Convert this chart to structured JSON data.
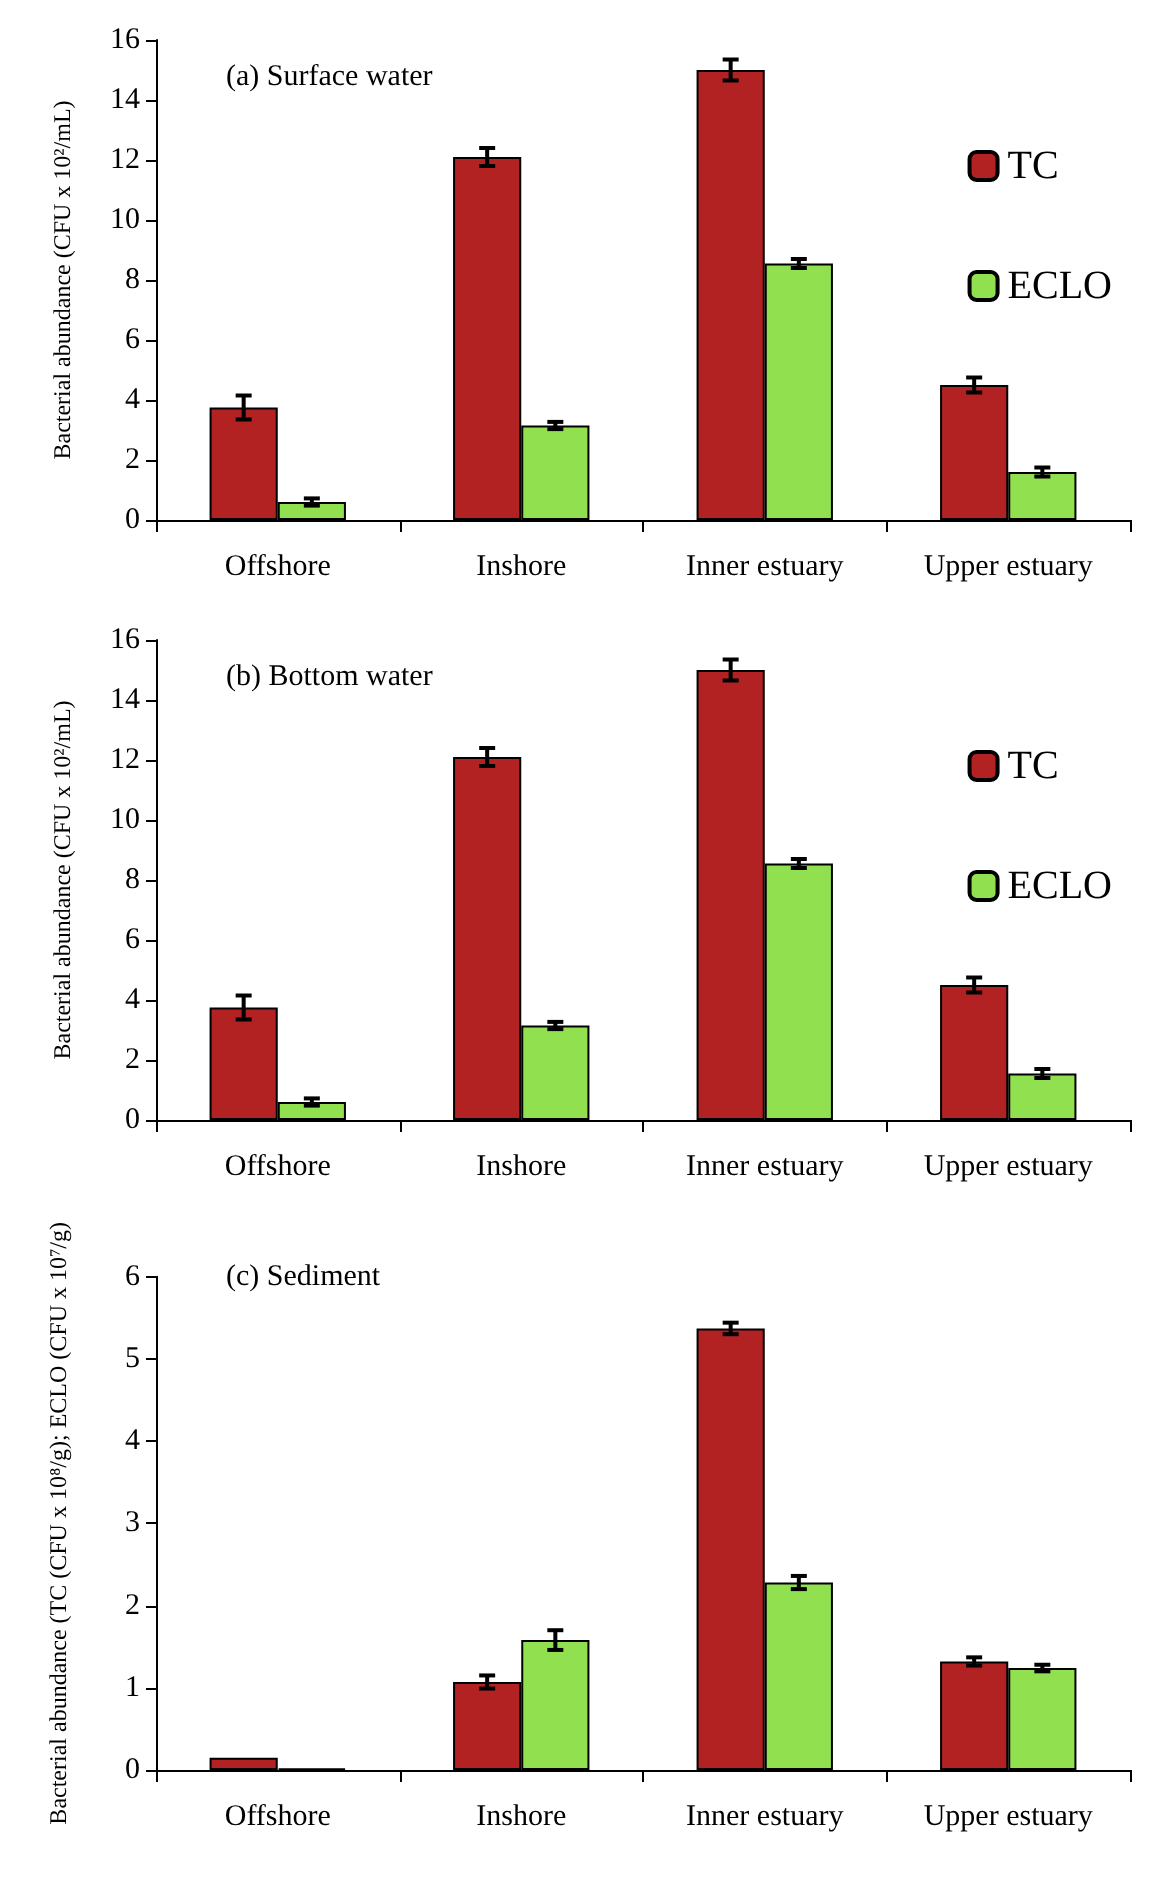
{
  "chart_data": [
    {
      "type": "bar",
      "title": "(a) Surface water",
      "ylabel": "Bacterial abundance (CFU x 10²/mL)",
      "categories": [
        "Offshore",
        "Inshore",
        "Inner estuary",
        "Upper estuary"
      ],
      "series": [
        {
          "name": "TC",
          "color": "#b22222",
          "values": [
            3.75,
            12.1,
            15.0,
            4.5
          ],
          "errors": [
            0.4,
            0.3,
            0.35,
            0.25
          ]
        },
        {
          "name": "ECLO",
          "color": "#90e050",
          "values": [
            0.6,
            3.15,
            8.55,
            1.6
          ],
          "errors": [
            0.12,
            0.12,
            0.15,
            0.15
          ]
        }
      ],
      "ylim": [
        0,
        16
      ],
      "yticks": [
        0,
        2,
        4,
        6,
        8,
        10,
        12,
        14,
        16
      ],
      "grid": false,
      "legend": "right"
    },
    {
      "type": "bar",
      "title": "(b) Bottom water",
      "ylabel": "Bacterial abundance (CFU x 10²/mL)",
      "categories": [
        "Offshore",
        "Inshore",
        "Inner estuary",
        "Upper estuary"
      ],
      "series": [
        {
          "name": "TC",
          "color": "#b22222",
          "values": [
            3.75,
            12.1,
            15.0,
            4.5
          ],
          "errors": [
            0.4,
            0.3,
            0.35,
            0.25
          ]
        },
        {
          "name": "ECLO",
          "color": "#90e050",
          "values": [
            0.6,
            3.15,
            8.55,
            1.55
          ],
          "errors": [
            0.12,
            0.12,
            0.15,
            0.15
          ]
        }
      ],
      "ylim": [
        0,
        16
      ],
      "yticks": [
        0,
        2,
        4,
        6,
        8,
        10,
        12,
        14,
        16
      ],
      "grid": false,
      "legend": "right"
    },
    {
      "type": "bar",
      "title": "(c) Sediment",
      "ylabel": "Bacterial abundance (TC (CFU x 10⁸/g); ECLO (CFU x 10⁷/g)",
      "categories": [
        "Offshore",
        "Inshore",
        "Inner estuary",
        "Upper estuary"
      ],
      "series": [
        {
          "color": "#b22222",
          "values": [
            0.15,
            1.07,
            5.37,
            1.32
          ],
          "errors": [
            null,
            0.08,
            0.07,
            0.05
          ]
        },
        {
          "color": "#90e050",
          "values": [
            0.02,
            1.58,
            2.28,
            1.24
          ],
          "errors": [
            null,
            0.12,
            0.08,
            0.04
          ]
        }
      ],
      "ylim": [
        0,
        6
      ],
      "yticks": [
        0,
        1,
        2,
        3,
        4,
        5,
        6
      ],
      "grid": false,
      "legend": false
    }
  ]
}
